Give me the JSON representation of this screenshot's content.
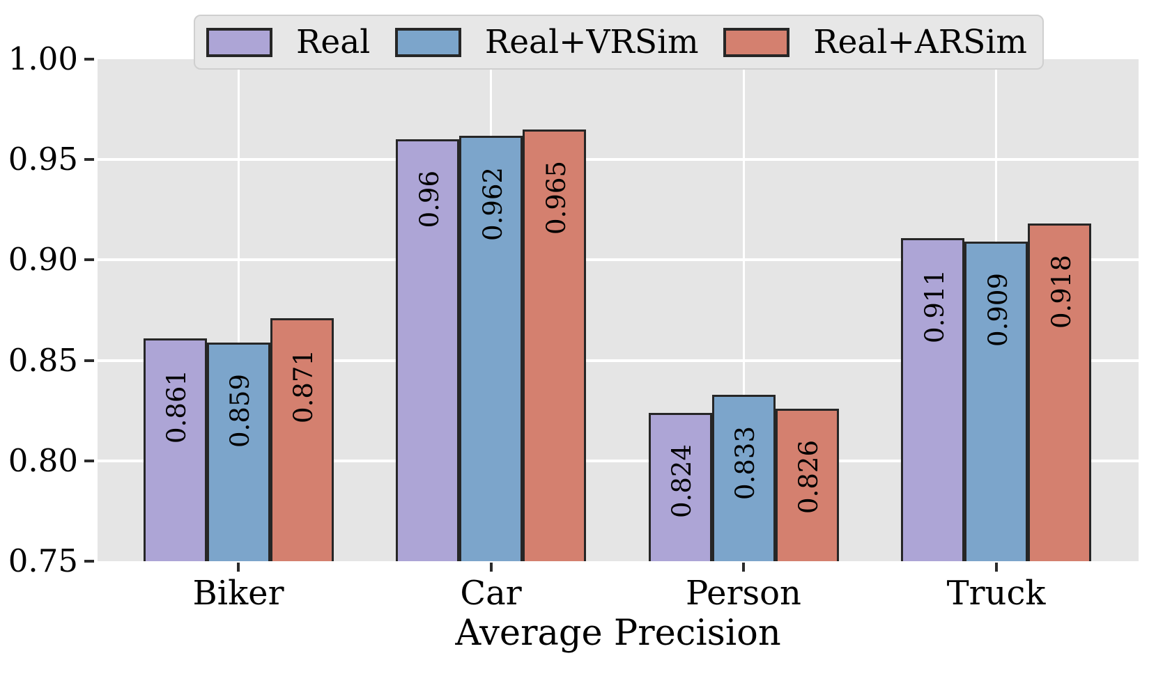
{
  "chart_data": {
    "type": "bar",
    "title": "",
    "xlabel": "Average Precision",
    "ylabel": "",
    "categories": [
      "Biker",
      "Car",
      "Person",
      "Truck"
    ],
    "series": [
      {
        "name": "Real",
        "color": "#ADA5D6",
        "values": [
          0.861,
          0.96,
          0.824,
          0.911
        ],
        "labels": [
          "0.861",
          "0.96",
          "0.824",
          "0.911"
        ]
      },
      {
        "name": "Real+VRSim",
        "color": "#7CA5CB",
        "values": [
          0.859,
          0.962,
          0.833,
          0.909
        ],
        "labels": [
          "0.859",
          "0.962",
          "0.833",
          "0.909"
        ]
      },
      {
        "name": "Real+ARSim",
        "color": "#D4806F",
        "values": [
          0.871,
          0.965,
          0.826,
          0.918
        ],
        "labels": [
          "0.871",
          "0.965",
          "0.826",
          "0.918"
        ]
      }
    ],
    "ylim": [
      0.75,
      1.0
    ],
    "yticks": [
      "1.00",
      "0.95",
      "0.90",
      "0.85",
      "0.80",
      "0.75"
    ],
    "ytick_values": [
      1.0,
      0.95,
      0.9,
      0.85,
      0.8,
      0.75
    ],
    "bar_value_labels_rotation_deg": 90,
    "grid": true,
    "legend_position": "top",
    "colors": {
      "plot_background": "#E5E5E5",
      "gridline": "#FFFFFF",
      "bar_edge": "#262626",
      "text": "#000000",
      "legend_background": "#E7E7E7",
      "legend_border": "#CFCFCF"
    }
  }
}
